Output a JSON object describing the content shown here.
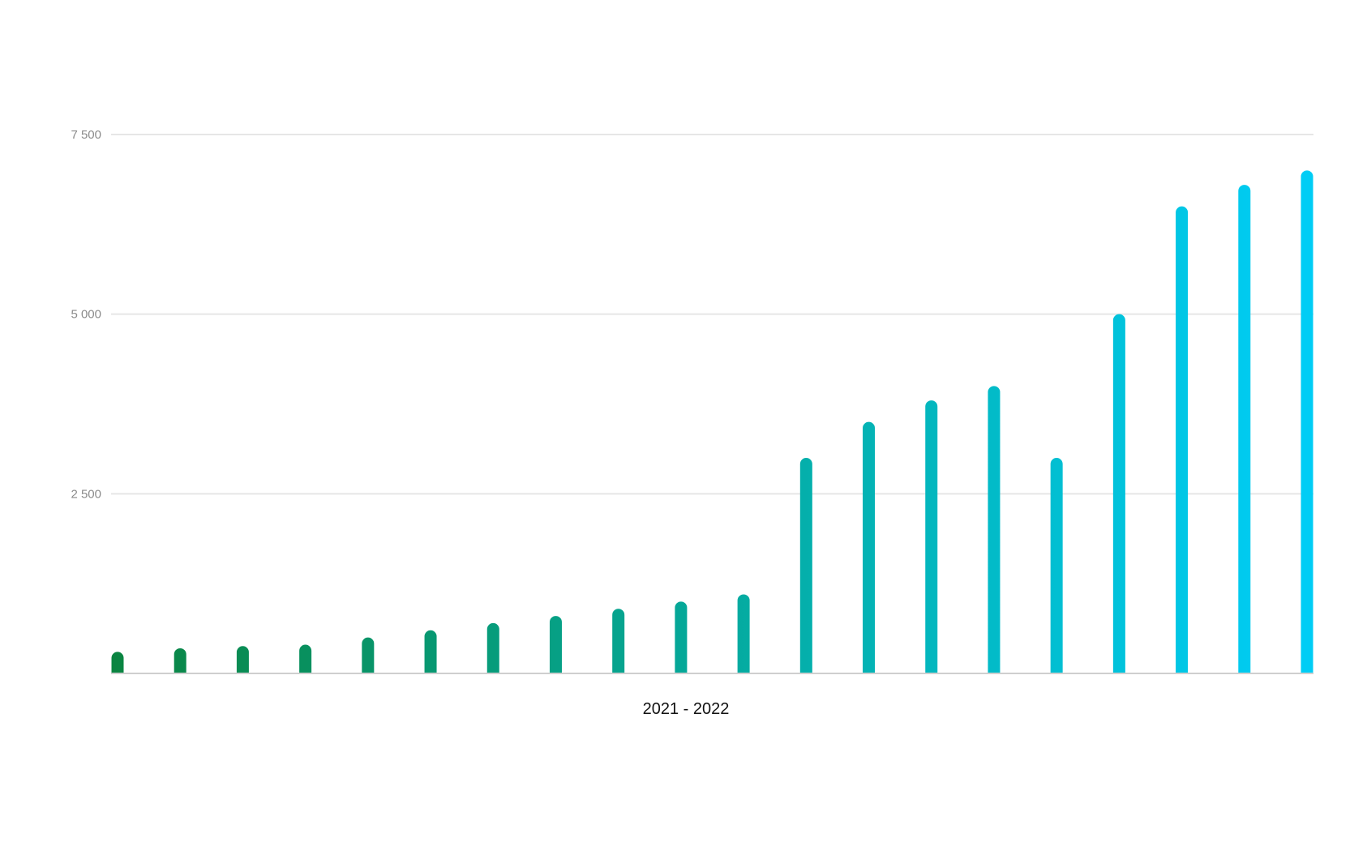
{
  "chart_data": {
    "type": "bar",
    "title": "",
    "xlabel": "2021 - 2022",
    "ylabel": "",
    "ylim": [
      0,
      7500
    ],
    "yticks": [
      {
        "value": 2500,
        "label": "2 500"
      },
      {
        "value": 5000,
        "label": "5 000"
      },
      {
        "value": 7500,
        "label": "7 500"
      }
    ],
    "grid": true,
    "legend": "none",
    "series": [
      {
        "values": [
          300,
          350,
          380,
          400,
          500,
          600,
          700,
          800,
          900,
          1000,
          1100,
          3000,
          3500,
          3800,
          4000,
          3000,
          5000,
          6500,
          6800,
          7000
        ]
      }
    ],
    "colors": {
      "gradient_start": "#0a8440",
      "gradient_end": "#00cdf5",
      "gridline": "#e6e6e6",
      "baseline": "#cfcfcf"
    }
  }
}
